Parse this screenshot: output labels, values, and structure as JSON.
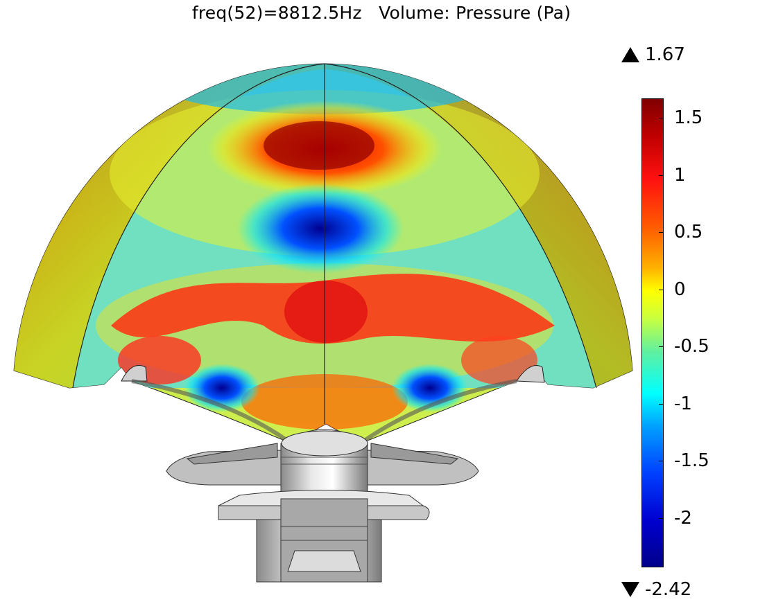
{
  "title": "freq(52)=8812.5Hz   Volume: Pressure (Pa)",
  "legend": {
    "max_label": "1.67",
    "min_label": "-2.42",
    "ticks": [
      {
        "label": "1.5",
        "value": 1.5
      },
      {
        "label": "1",
        "value": 1.0
      },
      {
        "label": "0.5",
        "value": 0.5
      },
      {
        "label": "0",
        "value": 0.0
      },
      {
        "label": "-0.5",
        "value": -0.5
      },
      {
        "label": "-1",
        "value": -1.0
      },
      {
        "label": "-1.5",
        "value": -1.5
      },
      {
        "label": "-2",
        "value": -2.0
      }
    ],
    "range": [
      -2.42,
      1.67
    ],
    "colormap": "rainbow (dark red to dark blue)"
  },
  "colors": {
    "max": "#800000",
    "red": "#ff1010",
    "yellow": "#ffff00",
    "cyan": "#00ffff",
    "min": "#00008a",
    "mesh_gray": "#c8c8c8"
  }
}
